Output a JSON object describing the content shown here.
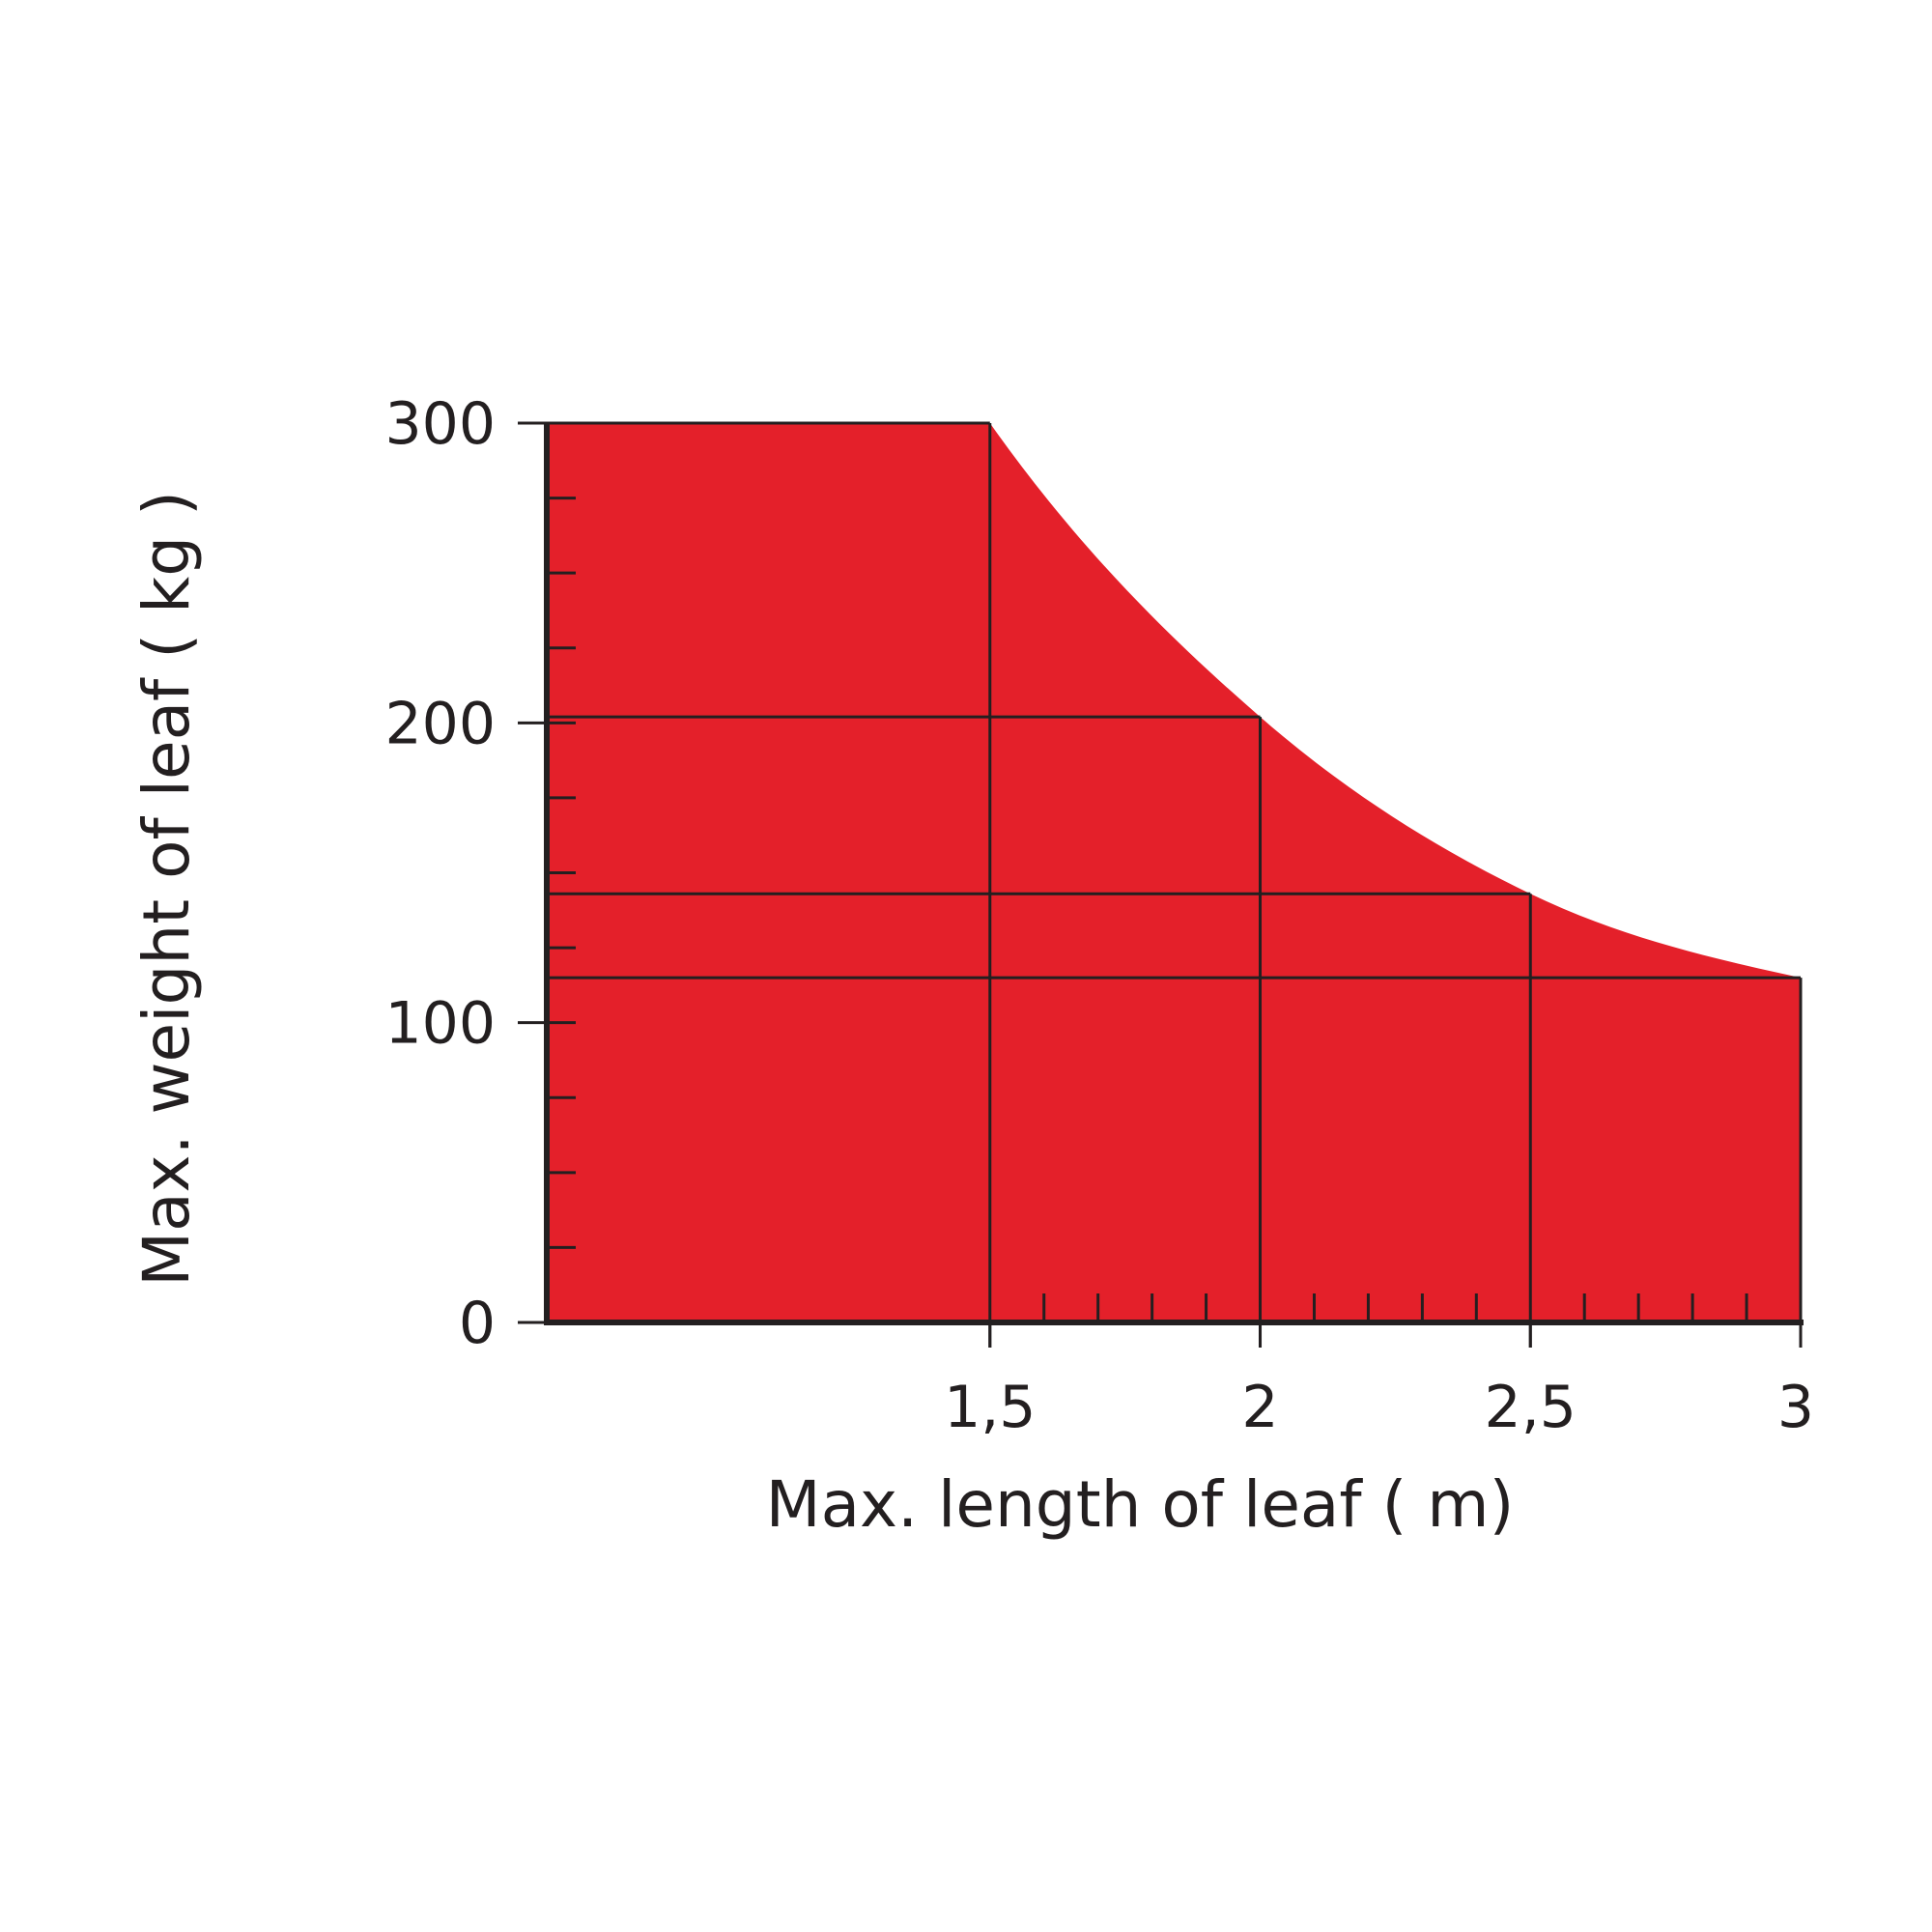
{
  "chart_data": {
    "type": "area",
    "title": "",
    "xlabel": "Max. length of leaf ( m)",
    "ylabel": "Max. weight of leaf ( kg )",
    "xlim": [
      0.68,
      3
    ],
    "ylim": [
      0,
      300
    ],
    "x_ticks": [
      {
        "value": 1.5,
        "label": "1,5"
      },
      {
        "value": 2,
        "label": "2"
      },
      {
        "value": 2.5,
        "label": "2,5"
      },
      {
        "value": 3,
        "label": "3"
      }
    ],
    "x_minor_ticks": [
      1.6,
      1.7,
      1.8,
      1.9,
      2.1,
      2.2,
      2.3,
      2.4,
      2.6,
      2.7,
      2.8,
      2.9
    ],
    "y_ticks": [
      {
        "value": 0,
        "label": "0"
      },
      {
        "value": 100,
        "label": "100"
      },
      {
        "value": 200,
        "label": "200"
      },
      {
        "value": 300,
        "label": "300"
      }
    ],
    "y_minor_ticks": [
      25,
      50,
      75,
      125,
      150,
      175,
      225,
      250,
      275
    ],
    "series": [
      {
        "x": [
          0.68,
          1.5,
          2,
          2.5,
          3
        ],
        "values": [
          300,
          300,
          202,
          143,
          115
        ]
      }
    ],
    "grid": "reference lines at each tabulated point",
    "legend": "none",
    "colors": {
      "fill": "#e4202a",
      "line": "#231f20"
    }
  }
}
